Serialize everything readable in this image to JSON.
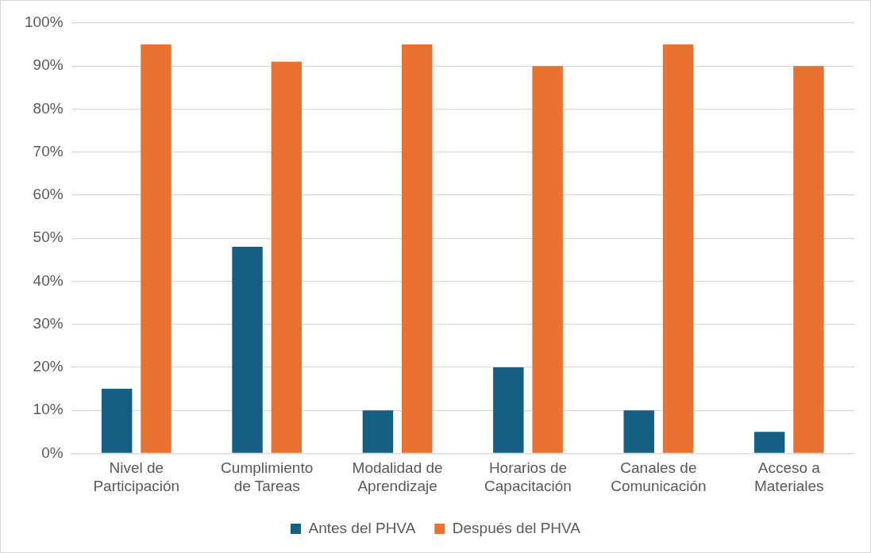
{
  "chart_data": {
    "type": "bar",
    "categories": [
      "Nivel de Participación",
      "Cumplimiento de Tareas",
      "Modalidad de Aprendizaje",
      "Horarios de Capacitación",
      "Canales de Comunicación",
      "Acceso a Materiales"
    ],
    "series": [
      {
        "name": "Antes del PHVA",
        "color": "#156082",
        "values": [
          15,
          48,
          10,
          20,
          10,
          5
        ]
      },
      {
        "name": "Después del PHVA",
        "color": "#e97132",
        "values": [
          95,
          91,
          95,
          90,
          95,
          90
        ]
      }
    ],
    "ylim": [
      0,
      100
    ],
    "yticks": [
      {
        "value": 0,
        "label": "0%"
      },
      {
        "value": 10,
        "label": "10%"
      },
      {
        "value": 20,
        "label": "20%"
      },
      {
        "value": 30,
        "label": "30%"
      },
      {
        "value": 40,
        "label": "40%"
      },
      {
        "value": 50,
        "label": "50%"
      },
      {
        "value": 60,
        "label": "60%"
      },
      {
        "value": 70,
        "label": "70%"
      },
      {
        "value": 80,
        "label": "80%"
      },
      {
        "value": 90,
        "label": "90%"
      },
      {
        "value": 100,
        "label": "100%"
      }
    ],
    "grid": "y",
    "legend": "bottom"
  }
}
